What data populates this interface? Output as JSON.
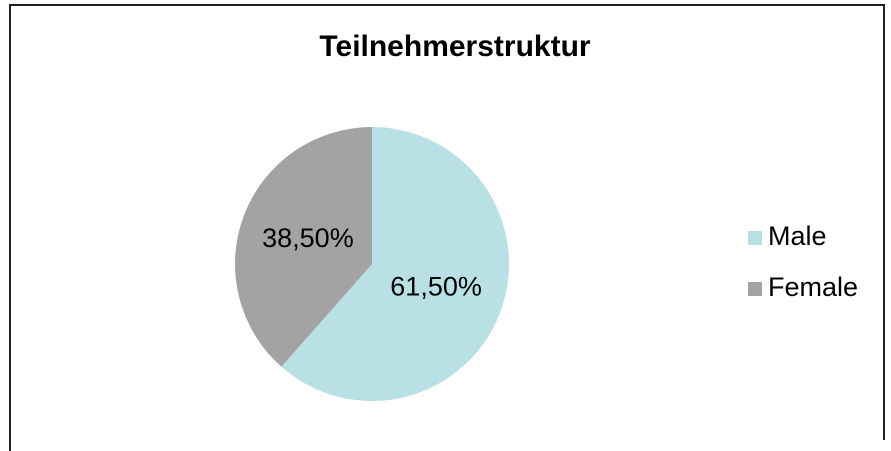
{
  "chart_data": {
    "type": "pie",
    "title": "Teilnehmerstruktur",
    "categories": [
      "Male",
      "Female"
    ],
    "values": [
      61.5,
      38.5
    ],
    "value_labels": [
      "61,50%",
      "38,50%"
    ],
    "colors": [
      "#b8e0e5",
      "#a3a3a3"
    ],
    "legend": "right"
  }
}
